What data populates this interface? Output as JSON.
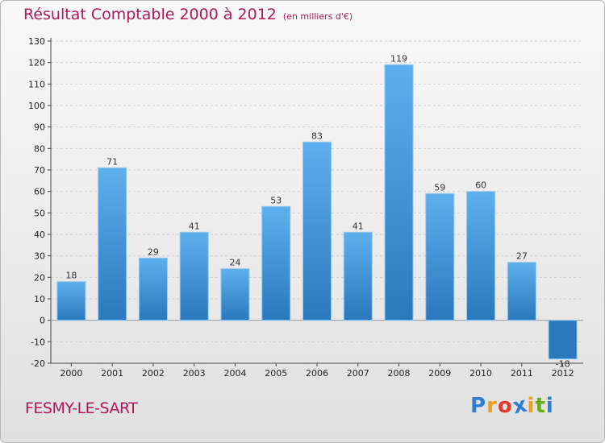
{
  "chart_data": {
    "type": "bar",
    "title": "Résultat Comptable 2000 à 2012",
    "subtitle": "(en milliers d'€)",
    "categories": [
      "2000",
      "2001",
      "2002",
      "2003",
      "2004",
      "2005",
      "2006",
      "2007",
      "2008",
      "2009",
      "2010",
      "2011",
      "2012"
    ],
    "values": [
      18,
      71,
      29,
      41,
      24,
      53,
      83,
      41,
      119,
      59,
      60,
      27,
      -18
    ],
    "data_labels": [
      "18",
      "71",
      "29",
      "41",
      "24",
      "53",
      "83",
      "41",
      "119",
      "59",
      "60",
      "27",
      "-18"
    ],
    "ylim": [
      -20,
      130
    ],
    "yticks": [
      130,
      120,
      110,
      100,
      90,
      80,
      70,
      60,
      50,
      40,
      30,
      20,
      10,
      0,
      -10,
      -20
    ],
    "xlabel": "",
    "ylabel": "",
    "grid": true,
    "bar_color": "#4a9fe0",
    "bar_color_dark": "#2a78bd",
    "title_color": "#b0185a"
  },
  "footer": {
    "commune": "FESMY-LE-SART"
  },
  "logo": {
    "letters": [
      "P",
      "r",
      "o",
      "x",
      "i",
      "t",
      "i"
    ],
    "colors": [
      "#2e7fd1",
      "#f0a020",
      "#e03c2c",
      "#2e7fd1",
      "#f0a020",
      "#6aaa1e",
      "#2e7fd1"
    ]
  }
}
